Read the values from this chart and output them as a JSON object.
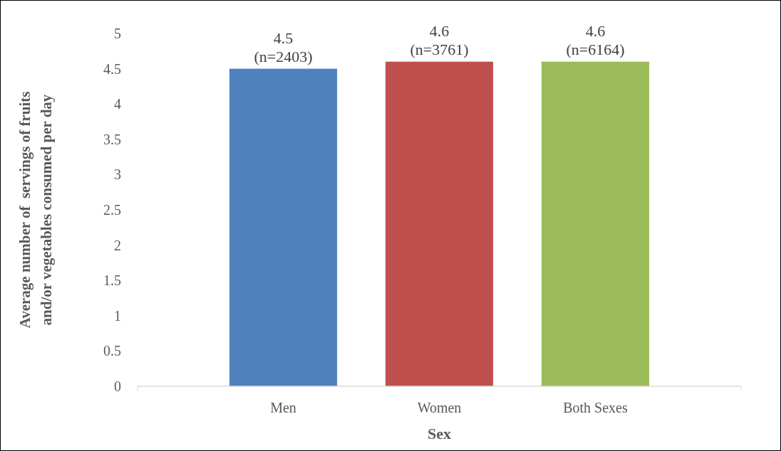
{
  "chart_data": {
    "type": "bar",
    "xlabel": "Sex",
    "ylabel": "Average number of  servings of fruits\nand/or vegetables consumed per day",
    "categories": [
      "Men",
      "Women",
      "Both Sexes"
    ],
    "values": [
      4.5,
      4.6,
      4.6
    ],
    "colors": [
      "#4f81bd",
      "#c0504d",
      "#9bbb59"
    ],
    "value_labels": [
      "4.5\n(n=2403)",
      "4.6\n(n=3761)",
      "4.6\n(n=6164)"
    ],
    "ylim": [
      0,
      5
    ],
    "yticks": [
      0,
      0.5,
      1,
      1.5,
      2,
      2.5,
      3,
      3.5,
      4,
      4.5,
      5
    ],
    "grid": false
  }
}
